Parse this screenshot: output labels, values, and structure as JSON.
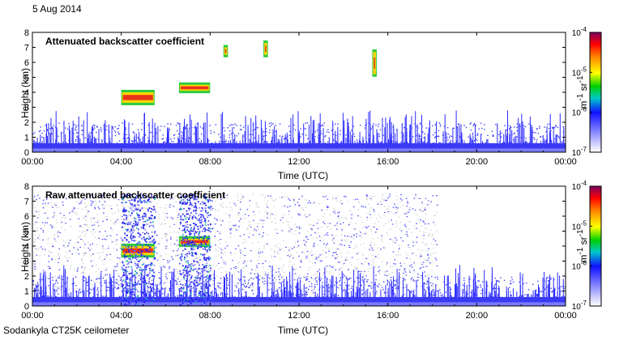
{
  "header": {
    "date": "5 Aug 2014"
  },
  "footer": {
    "instrument": "Sodankyla CT25K ceilometer"
  },
  "chart_data": [
    {
      "type": "heatmap",
      "title": "Attenuated backscatter coefficient",
      "xlabel": "Time (UTC)",
      "ylabel": "Height (km)",
      "x_ticks": [
        "00:00",
        "04:00",
        "08:00",
        "12:00",
        "16:00",
        "20:00",
        "00:00"
      ],
      "y_ticks": [
        "0",
        "1",
        "2",
        "3",
        "4",
        "5",
        "6",
        "7",
        "8"
      ],
      "xlim_hours": [
        0,
        24
      ],
      "ylim_km": [
        0,
        8
      ],
      "colorbar": {
        "label": "m-1 sr-1",
        "ticks": [
          "10-7",
          "10-6",
          "10-5",
          "10-4"
        ],
        "scale": "log",
        "range": [
          1e-07,
          0.0001
        ]
      },
      "features": [
        {
          "name": "boundary layer",
          "t_start": 0,
          "t_end": 24,
          "top_km": 0.6,
          "level": "1e-6"
        },
        {
          "name": "cloud layer",
          "t_start": 4.0,
          "t_end": 5.5,
          "base_km": 3.3,
          "top_km": 4.0,
          "level": "1e-5"
        },
        {
          "name": "cloud layer",
          "t_start": 6.6,
          "t_end": 8.0,
          "base_km": 4.1,
          "top_km": 4.5,
          "level": "1e-5"
        },
        {
          "name": "elevated cloud",
          "t_start": 8.6,
          "t_end": 8.8,
          "base_km": 6.5,
          "top_km": 7.0,
          "level": "1e-5"
        },
        {
          "name": "elevated cloud",
          "t_start": 10.4,
          "t_end": 10.6,
          "base_km": 6.5,
          "top_km": 7.3,
          "level": "1e-5"
        },
        {
          "name": "elevated cloud",
          "t_start": 15.3,
          "t_end": 15.5,
          "base_km": 5.2,
          "top_km": 6.7,
          "level": "1e-5"
        }
      ]
    },
    {
      "type": "heatmap",
      "title": "Raw attenuated backscatter coefficient",
      "xlabel": "Time (UTC)",
      "ylabel": "Height (km)",
      "x_ticks": [
        "00:00",
        "04:00",
        "08:00",
        "12:00",
        "16:00",
        "20:00",
        "00:00"
      ],
      "y_ticks": [
        "0",
        "1",
        "2",
        "3",
        "4",
        "5",
        "6",
        "7",
        "8"
      ],
      "xlim_hours": [
        0,
        24
      ],
      "ylim_km": [
        0,
        8
      ],
      "colorbar": {
        "label": "m-1 sr-1",
        "ticks": [
          "10-7",
          "10-6",
          "10-5",
          "10-4"
        ],
        "scale": "log",
        "range": [
          1e-07,
          0.0001
        ]
      },
      "features": [
        {
          "name": "noise region",
          "t_start": 0,
          "t_end": 18.2,
          "base_km": 1.0,
          "top_km": 7.5,
          "level": "noise"
        },
        {
          "name": "boundary layer",
          "t_start": 0,
          "t_end": 24,
          "top_km": 0.6,
          "level": "1e-6"
        },
        {
          "name": "cloud layer",
          "t_start": 4.0,
          "t_end": 5.5,
          "base_km": 3.4,
          "top_km": 4.0,
          "level": "1e-5"
        },
        {
          "name": "cloud layer",
          "t_start": 6.6,
          "t_end": 8.0,
          "base_km": 4.1,
          "top_km": 4.5,
          "level": "1e-5"
        },
        {
          "name": "precipitation column",
          "t_start": 4.0,
          "t_end": 5.5,
          "base_km": 0,
          "top_km": 7.5,
          "level": "1e-6"
        },
        {
          "name": "precipitation column",
          "t_start": 6.6,
          "t_end": 8.0,
          "base_km": 0,
          "top_km": 7.5,
          "level": "1e-6"
        }
      ]
    }
  ]
}
